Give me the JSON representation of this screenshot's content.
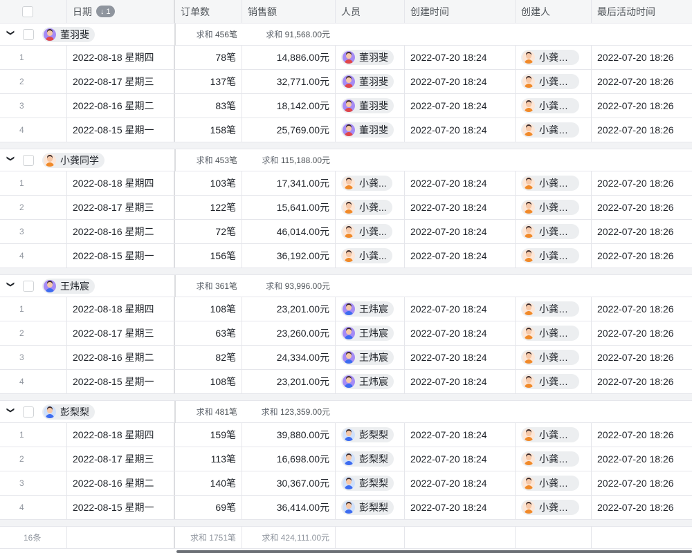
{
  "header": {
    "columns": [
      "日期",
      "订单数",
      "销售额",
      "人员",
      "创建时间",
      "创建人",
      "最后活动时间"
    ],
    "sort_badge": "↓ 1"
  },
  "sum_label": "求和",
  "groups": [
    {
      "name": "董羽斐",
      "avatar_color": "#a58bf5",
      "body": "#e0474c",
      "orders_sum": "456笔",
      "sales_sum": "91,568.00元",
      "rows": [
        [
          "1",
          "2022-08-18 星期四",
          "78笔",
          "14,886.00元"
        ],
        [
          "2",
          "2022-08-17 星期三",
          "137笔",
          "32,771.00元"
        ],
        [
          "3",
          "2022-08-16 星期二",
          "83笔",
          "18,142.00元"
        ],
        [
          "4",
          "2022-08-15 星期一",
          "158笔",
          "25,769.00元"
        ]
      ]
    },
    {
      "name": "小龚同学",
      "avatar_color": "#fde6d6",
      "body": "#f08a2a",
      "orders_sum": "453笔",
      "sales_sum": "115,188.00元",
      "person_label": "小龚...",
      "rows": [
        [
          "1",
          "2022-08-18 星期四",
          "103笔",
          "17,341.00元"
        ],
        [
          "2",
          "2022-08-17 星期三",
          "122笔",
          "15,641.00元"
        ],
        [
          "3",
          "2022-08-16 星期二",
          "72笔",
          "46,014.00元"
        ],
        [
          "4",
          "2022-08-15 星期一",
          "156笔",
          "36,192.00元"
        ]
      ]
    },
    {
      "name": "王炜宸",
      "avatar_color": "#a58bf5",
      "body": "#3d6cf0",
      "orders_sum": "361笔",
      "sales_sum": "93,996.00元",
      "rows": [
        [
          "1",
          "2022-08-18 星期四",
          "108笔",
          "23,201.00元"
        ],
        [
          "2",
          "2022-08-17 星期三",
          "63笔",
          "23,260.00元"
        ],
        [
          "3",
          "2022-08-16 星期二",
          "82笔",
          "24,334.00元"
        ],
        [
          "4",
          "2022-08-15 星期一",
          "108笔",
          "23,201.00元"
        ]
      ]
    },
    {
      "name": "彭梨梨",
      "avatar_color": "#cfe0fb",
      "body": "#3d6cf0",
      "orders_sum": "481笔",
      "sales_sum": "123,359.00元",
      "rows": [
        [
          "1",
          "2022-08-18 星期四",
          "159笔",
          "39,880.00元"
        ],
        [
          "2",
          "2022-08-17 星期三",
          "113笔",
          "16,698.00元"
        ],
        [
          "3",
          "2022-08-16 星期二",
          "140笔",
          "30,367.00元"
        ],
        [
          "4",
          "2022-08-15 星期一",
          "69笔",
          "36,414.00元"
        ]
      ]
    }
  ],
  "created_time": "2022-07-20 18:24",
  "creator": "小龚同学",
  "last_activity": "2022-07-20 18:26",
  "footer": {
    "count": "16条",
    "orders_sum": "1751笔",
    "sales_sum": "424,111.00元"
  }
}
